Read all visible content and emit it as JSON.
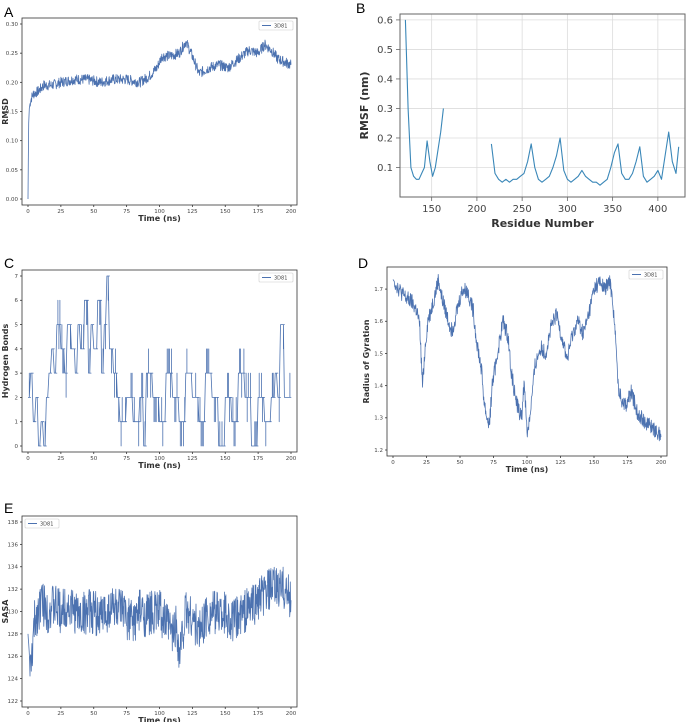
{
  "panels": [
    {
      "letter": "A",
      "chart_data": {
        "type": "line",
        "title": "",
        "xlabel": "Time (ns)",
        "ylabel": "RMSD",
        "xlim": [
          0,
          200
        ],
        "ylim": [
          0.0,
          0.3
        ],
        "xticks": [
          0,
          25,
          50,
          75,
          100,
          125,
          150,
          175,
          200
        ],
        "yticks": [
          0.0,
          0.05,
          0.1,
          0.15,
          0.2,
          0.25,
          0.3
        ],
        "ytick_labels": [
          "0.00",
          "0.05",
          "0.10",
          "0.15",
          "0.20",
          "0.25",
          "0.30"
        ],
        "grid": false,
        "legend": "top-right",
        "series": [
          {
            "name": "3D81",
            "color": "#4c72b0",
            "x": [
              0,
              0.5,
              1,
              2,
              4,
              8,
              12,
              18,
              25,
              35,
              45,
              55,
              65,
              75,
              85,
              92,
              98,
              102,
              108,
              115,
              120,
              125,
              130,
              138,
              145,
              152,
              160,
              168,
              175,
              180,
              185,
              190,
              195,
              200
            ],
            "y": [
              0.0,
              0.13,
              0.155,
              0.17,
              0.18,
              0.185,
              0.195,
              0.195,
              0.2,
              0.205,
              0.205,
              0.2,
              0.205,
              0.205,
              0.2,
              0.21,
              0.225,
              0.245,
              0.245,
              0.25,
              0.27,
              0.245,
              0.215,
              0.225,
              0.23,
              0.225,
              0.24,
              0.255,
              0.25,
              0.265,
              0.255,
              0.24,
              0.235,
              0.23
            ]
          }
        ]
      }
    },
    {
      "letter": "B",
      "chart_data": {
        "type": "line",
        "title": "",
        "xlabel": "Residue Number",
        "ylabel": "RMSF (nm)",
        "xlim": [
          115,
          430
        ],
        "ylim": [
          0.0,
          0.62
        ],
        "xticks": [
          150,
          200,
          250,
          300,
          350,
          400
        ],
        "yticks": [
          0.1,
          0.2,
          0.3,
          0.4,
          0.5,
          0.6
        ],
        "ytick_labels": [
          "0.1",
          "0.2",
          "0.3",
          "0.4",
          "0.5",
          "0.6"
        ],
        "grid": true,
        "legend": "none",
        "series": [
          {
            "name": "",
            "color": "#3a87b8",
            "x": [
              121,
              124,
              127,
              130,
              133,
              136,
              139,
              142,
              145,
              148,
              151,
              154,
              157,
              160,
              163
            ],
            "y": [
              0.6,
              0.3,
              0.1,
              0.07,
              0.06,
              0.06,
              0.08,
              0.1,
              0.19,
              0.12,
              0.07,
              0.1,
              0.16,
              0.22,
              0.3
            ]
          },
          {
            "name": "",
            "color": "#3a87b8",
            "x": [
              216,
              220,
              224,
              228,
              232,
              236,
              240,
              244,
              248,
              252,
              256,
              260,
              264,
              268,
              272,
              276,
              280,
              284,
              288,
              292,
              296,
              300,
              304,
              308,
              312,
              316,
              320,
              324,
              328,
              332,
              336,
              340,
              344,
              348,
              352,
              356,
              360,
              364,
              368,
              372,
              376,
              380,
              384,
              388,
              392,
              396,
              400,
              404,
              408,
              412,
              416,
              420,
              423
            ],
            "y": [
              0.18,
              0.08,
              0.06,
              0.05,
              0.06,
              0.05,
              0.06,
              0.06,
              0.07,
              0.08,
              0.12,
              0.18,
              0.1,
              0.06,
              0.05,
              0.06,
              0.07,
              0.1,
              0.14,
              0.2,
              0.09,
              0.06,
              0.05,
              0.06,
              0.07,
              0.09,
              0.07,
              0.06,
              0.05,
              0.05,
              0.04,
              0.05,
              0.06,
              0.1,
              0.15,
              0.18,
              0.08,
              0.06,
              0.06,
              0.08,
              0.12,
              0.17,
              0.07,
              0.05,
              0.06,
              0.07,
              0.09,
              0.06,
              0.14,
              0.22,
              0.12,
              0.08,
              0.17
            ]
          }
        ]
      }
    },
    {
      "letter": "C",
      "chart_data": {
        "type": "line",
        "title": "",
        "xlabel": "Time (ns)",
        "ylabel": "Hydrogen Bonds",
        "xlim": [
          0,
          200
        ],
        "ylim": [
          0,
          7
        ],
        "xticks": [
          0,
          25,
          50,
          75,
          100,
          125,
          150,
          175,
          200
        ],
        "yticks": [
          0,
          1,
          2,
          3,
          4,
          5,
          6,
          7
        ],
        "ytick_labels": [
          "0",
          "1",
          "2",
          "3",
          "4",
          "5",
          "6",
          "7"
        ],
        "grid": false,
        "legend": "top-right",
        "series": [
          {
            "name": "3D81",
            "color": "#4c72b0",
            "step": true,
            "x": [
              0,
              2,
              4,
              6,
              8,
              10,
              12,
              14,
              16,
              18,
              20,
              22,
              25,
              28,
              30,
              33,
              36,
              38,
              40,
              43,
              46,
              48,
              50,
              53,
              56,
              58,
              60,
              62,
              65,
              68,
              70,
              75,
              80,
              85,
              88,
              90,
              95,
              100,
              105,
              110,
              115,
              120,
              125,
              130,
              135,
              140,
              145,
              150,
              155,
              160,
              165,
              170,
              175,
              180,
              185,
              188,
              190,
              192,
              195,
              200
            ],
            "y": [
              2,
              3,
              1,
              2,
              0,
              1,
              0,
              2,
              3,
              4,
              3,
              5,
              4,
              3,
              5,
              4,
              3,
              5,
              4,
              6,
              3,
              5,
              4,
              6,
              3,
              5,
              7,
              4,
              3,
              2,
              1,
              2,
              1,
              2,
              0,
              3,
              2,
              1,
              3,
              2,
              1,
              3,
              2,
              1,
              3,
              2,
              0,
              2,
              1,
              3,
              2,
              0,
              2,
              1,
              2,
              3,
              2,
              5,
              2,
              2
            ]
          }
        ]
      }
    },
    {
      "letter": "D",
      "chart_data": {
        "type": "line",
        "title": "",
        "xlabel": "Time (ns)",
        "ylabel": "Radius of Gyration",
        "xlim": [
          0,
          200
        ],
        "ylim": [
          1.2,
          1.75
        ],
        "xticks": [
          0,
          25,
          50,
          75,
          100,
          125,
          150,
          175,
          200
        ],
        "yticks": [
          1.2,
          1.3,
          1.4,
          1.5,
          1.6,
          1.7
        ],
        "ytick_labels": [
          "1.2",
          "1.3",
          "1.4",
          "1.5",
          "1.6",
          "1.7"
        ],
        "grid": false,
        "legend": "top-right",
        "series": [
          {
            "name": "3D81",
            "color": "#4c72b0",
            "x": [
              0,
              3,
              6,
              10,
              14,
              18,
              20,
              22,
              24,
              26,
              30,
              34,
              36,
              40,
              44,
              48,
              52,
              56,
              60,
              62,
              64,
              66,
              68,
              70,
              72,
              74,
              78,
              82,
              86,
              88,
              92,
              96,
              98,
              100,
              102,
              104,
              106,
              110,
              114,
              118,
              122,
              126,
              130,
              134,
              138,
              142,
              146,
              150,
              154,
              158,
              162,
              164,
              166,
              168,
              170,
              174,
              178,
              182,
              186,
              190,
              194,
              198,
              200
            ],
            "y": [
              1.73,
              1.71,
              1.69,
              1.67,
              1.66,
              1.63,
              1.58,
              1.4,
              1.52,
              1.6,
              1.66,
              1.73,
              1.68,
              1.62,
              1.57,
              1.64,
              1.7,
              1.69,
              1.63,
              1.55,
              1.5,
              1.45,
              1.35,
              1.3,
              1.28,
              1.4,
              1.5,
              1.6,
              1.55,
              1.45,
              1.35,
              1.3,
              1.42,
              1.25,
              1.3,
              1.38,
              1.46,
              1.52,
              1.5,
              1.58,
              1.62,
              1.55,
              1.48,
              1.56,
              1.6,
              1.56,
              1.62,
              1.7,
              1.72,
              1.7,
              1.72,
              1.66,
              1.55,
              1.4,
              1.36,
              1.34,
              1.38,
              1.32,
              1.3,
              1.28,
              1.27,
              1.25,
              1.24
            ]
          }
        ]
      }
    },
    {
      "letter": "E",
      "chart_data": {
        "type": "line",
        "title": "",
        "xlabel": "Time (ns)",
        "ylabel": "SASA",
        "xlim": [
          0,
          200
        ],
        "ylim": [
          122,
          138
        ],
        "xticks": [
          0,
          25,
          50,
          75,
          100,
          125,
          150,
          175,
          200
        ],
        "yticks": [
          122,
          124,
          126,
          128,
          130,
          132,
          134,
          136,
          138
        ],
        "ytick_labels": [
          "122",
          "124",
          "126",
          "128",
          "130",
          "132",
          "134",
          "136",
          "138"
        ],
        "grid": false,
        "legend": "top-left",
        "series": [
          {
            "name": "3D81",
            "color": "#4c72b0",
            "x": [
              0,
              2,
              5,
              10,
              15,
              20,
              25,
              30,
              35,
              40,
              45,
              50,
              55,
              60,
              65,
              70,
              75,
              80,
              85,
              90,
              95,
              100,
              105,
              110,
              113,
              115,
              120,
              125,
              130,
              135,
              140,
              145,
              150,
              155,
              160,
              165,
              170,
              175,
              180,
              185,
              190,
              195,
              200
            ],
            "y": [
              128,
              124.5,
              129,
              131,
              130,
              130.5,
              130,
              130.5,
              130,
              129.5,
              130,
              130,
              129.5,
              130,
              130.5,
              130,
              129.5,
              129,
              130,
              129.5,
              130,
              130,
              129,
              128,
              129,
              126,
              130,
              129.5,
              128,
              129.5,
              130,
              130,
              130,
              129,
              129.5,
              130,
              130.5,
              131,
              131.5,
              132,
              132,
              132,
              131
            ]
          }
        ]
      }
    }
  ]
}
